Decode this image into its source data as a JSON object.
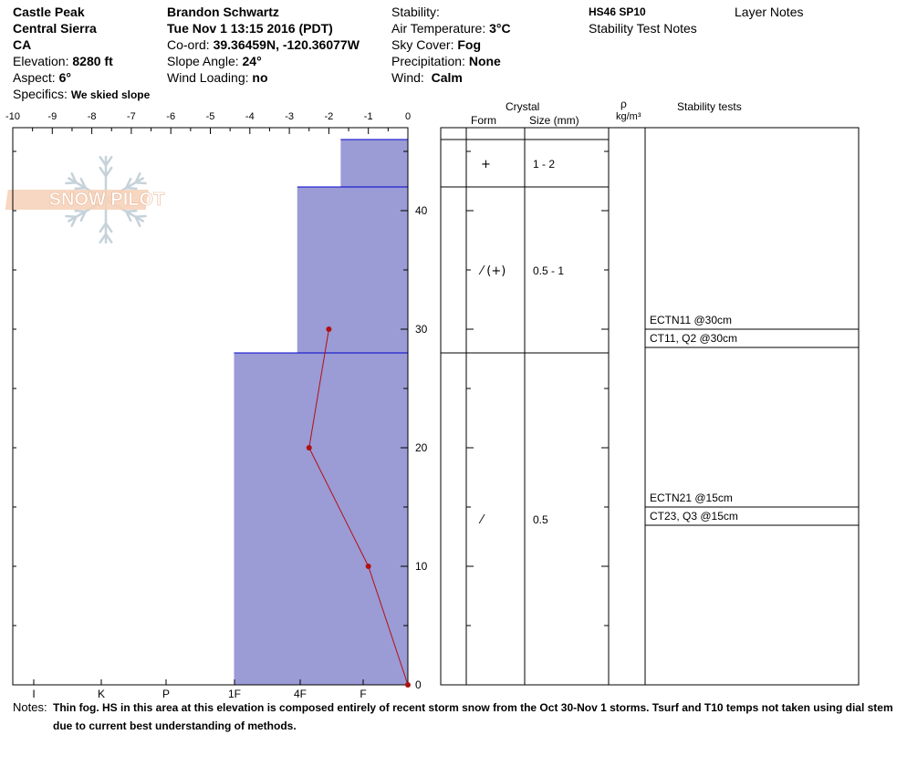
{
  "header": {
    "site": "Castle Peak",
    "range": "Central Sierra",
    "state": "CA",
    "elevation_label": "Elevation:",
    "elevation_value": "8280 ft",
    "aspect_label": "Aspect:",
    "aspect_value": "6°",
    "specifics_label": "Specifics:",
    "specifics_value": "We skied slope",
    "observer": "Brandon Schwartz",
    "datetime": "Tue Nov 1 13:15 2016 (PDT)",
    "coord_label": "Co-ord:",
    "coord_value": "39.36459N, -120.36077W",
    "slope_label": "Slope Angle:",
    "slope_value": "24°",
    "wind_loading_label": "Wind Loading:",
    "wind_loading_value": "no",
    "stability_label": "Stability:",
    "air_temp_label": "Air Temperature:",
    "air_temp_value": "3°C",
    "sky_label": "Sky Cover:",
    "sky_value": "Fog",
    "precip_label": "Precipitation:",
    "precip_value": "None",
    "wind_label": "Wind:",
    "wind_value": "Calm",
    "hs_code": "HS46 SP10",
    "stability_notes": "Stability Test Notes",
    "layer_notes": "Layer Notes"
  },
  "logo_text": "SNOW PILOT",
  "columns": {
    "crystal": "Crystal",
    "form": "Form",
    "size": "Size (mm)",
    "rho": "ρ",
    "density_unit": "kg/m³",
    "stability_tests": "Stability tests"
  },
  "notes": {
    "label": "Notes:",
    "text": "Thin fog. HS in this area at this elevation is composed entirely of recent storm snow from the Oct 30-Nov 1 storms. Tsurf and T10 temps not taken using dial stem due to current best understanding of methods."
  },
  "chart_data": {
    "type": "area",
    "temperature_axis": {
      "range": [
        -10,
        0
      ],
      "ticks": [
        "-10",
        "-9",
        "-8",
        "-7",
        "-6",
        "-5",
        "-4",
        "-3",
        "-2",
        "-1",
        "0"
      ]
    },
    "height_axis": {
      "range": [
        0,
        47
      ],
      "ticks": [
        "0",
        "10",
        "20",
        "30",
        "40"
      ]
    },
    "hardness_axis": {
      "ticks": [
        "I",
        "K",
        "P",
        "1F",
        "4F",
        "F"
      ]
    },
    "hardness_layers": [
      {
        "bottom": 42,
        "top": 46,
        "width_temp": -1.7
      },
      {
        "bottom": 28,
        "top": 42,
        "width_temp": -2.8
      },
      {
        "bottom": 0,
        "top": 28,
        "width_temp": -4.4
      }
    ],
    "temperature_profile": [
      {
        "height": 30,
        "temp": -2.0
      },
      {
        "height": 20,
        "temp": -2.5
      },
      {
        "height": 10,
        "temp": -1.0
      },
      {
        "height": 0,
        "temp": 0.0
      }
    ],
    "crystal_layers": [
      {
        "bottom": 42,
        "top": 46,
        "form": "+",
        "size": "1 - 2"
      },
      {
        "bottom": 28,
        "top": 42,
        "form": "⁄ (+)",
        "size": "0.5 - 1"
      },
      {
        "bottom": 0,
        "top": 28,
        "form": "⁄",
        "size": "0.5"
      }
    ],
    "stability_tests": [
      {
        "height": 30,
        "label": "ECTN11 @30cm"
      },
      {
        "height": 30,
        "label": "CT11, Q2 @30cm"
      },
      {
        "height": 15,
        "label": "ECTN21 @15cm"
      },
      {
        "height": 15,
        "label": "CT23, Q3 @15cm"
      }
    ]
  },
  "colors": {
    "layer_fill": "#9b9bd6",
    "layer_edge": "#0000cc",
    "temp_line": "#b01010"
  }
}
